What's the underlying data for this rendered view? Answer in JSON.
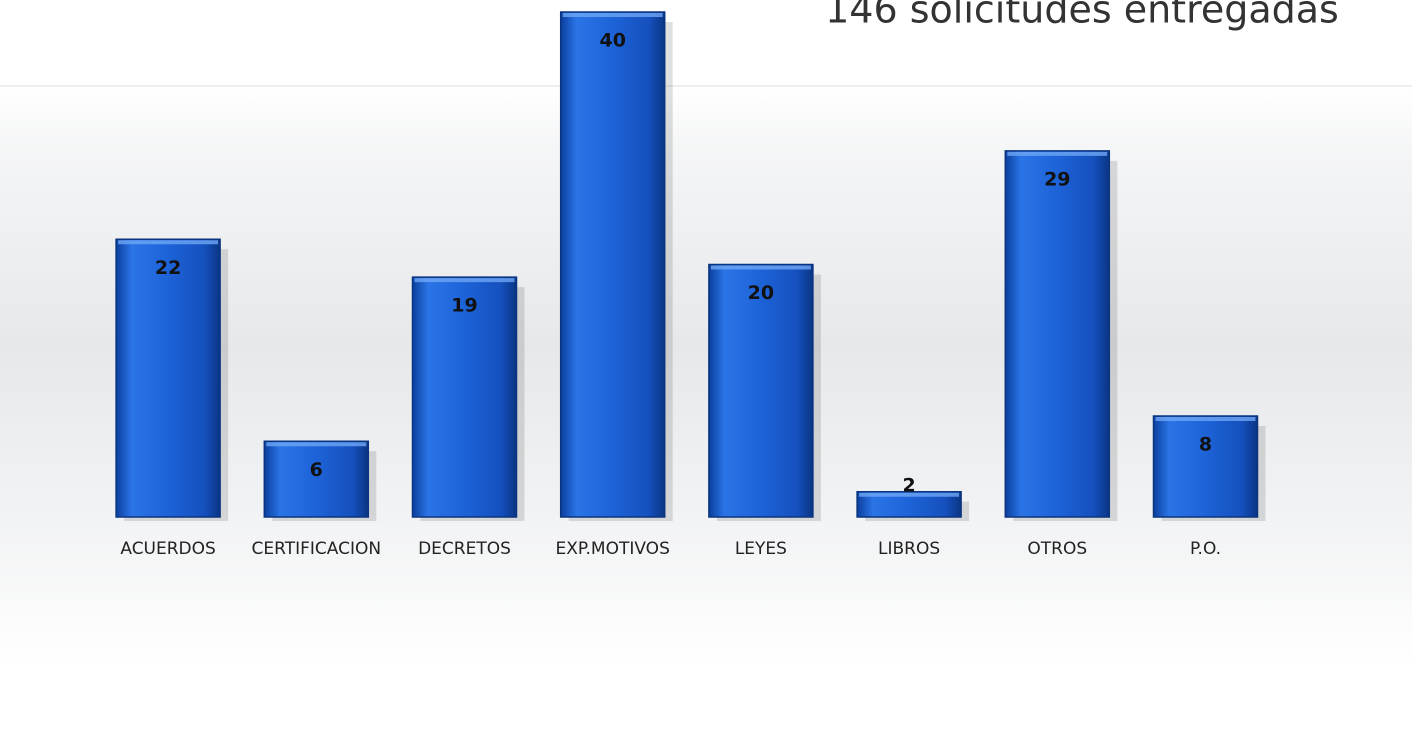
{
  "chart_data": {
    "type": "bar",
    "title": "146 solicitudes entregadas",
    "categories": [
      "ACUERDOS",
      "CERTIFICACION",
      "DECRETOS",
      "EXP.MOTIVOS",
      "LEYES",
      "LIBROS",
      "OTROS",
      "P.O."
    ],
    "values": [
      22,
      6,
      19,
      40,
      20,
      2,
      29,
      8
    ],
    "color": "#1a5fd6"
  }
}
